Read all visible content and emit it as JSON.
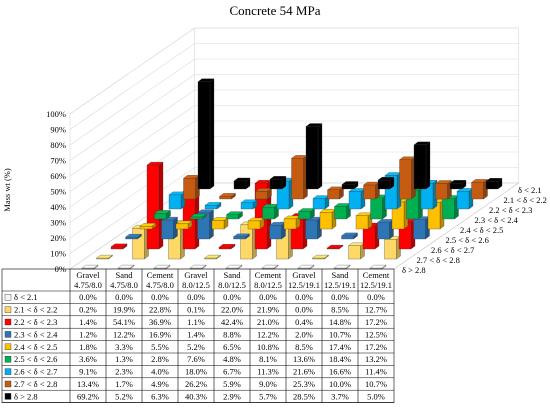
{
  "chart_data": {
    "type": "bar",
    "title": "Concrete 54 MPa",
    "xlabel": "",
    "ylabel": "Mass wt (%)",
    "ylim": [
      0,
      100
    ],
    "yticks": [
      "0%",
      "10%",
      "20%",
      "30%",
      "40%",
      "50%",
      "60%",
      "70%",
      "80%",
      "90%",
      "100%"
    ],
    "grid": true,
    "categories": [
      [
        "Gravel",
        "4.75/8.0"
      ],
      [
        "Sand",
        "4.75/8.0"
      ],
      [
        "Cement",
        "4.75/8.0"
      ],
      [
        "Gravel",
        "8.0/12.5"
      ],
      [
        "Sand",
        "8.0/12.5"
      ],
      [
        "Cement",
        "8.0/12.5"
      ],
      [
        "Gravel",
        "12.5/19.1"
      ],
      [
        "Sand",
        "12.5/19.1"
      ],
      [
        "Cement",
        "12.5/19.1"
      ]
    ],
    "series": [
      {
        "name": "δ < 2.1",
        "color": "#f5f5f5",
        "values": [
          0.0,
          0.0,
          0.0,
          0.0,
          0.0,
          0.0,
          0.0,
          0.0,
          0.0
        ],
        "labels": [
          "0.0%",
          "0.0%",
          "0.0%",
          "0.0%",
          "0.0%",
          "0.0%",
          "0.0%",
          "0.0%",
          "0.0%"
        ]
      },
      {
        "name": "2.1 < δ < 2.2",
        "color": "#ffd966",
        "values": [
          0.2,
          19.9,
          22.8,
          0.1,
          22.0,
          21.9,
          0.0,
          8.5,
          12.7
        ],
        "labels": [
          "0.2%",
          "19.9%",
          "22.8%",
          "0.1%",
          "22.0%",
          "21.9%",
          "0.0%",
          "8.5%",
          "12.7%"
        ]
      },
      {
        "name": "2.2 < δ < 2.3",
        "color": "#ff0000",
        "values": [
          1.4,
          54.1,
          36.9,
          1.1,
          42.4,
          21.0,
          0.4,
          14.8,
          17.2
        ],
        "labels": [
          "1.4%",
          "54.1%",
          "36.9%",
          "1.1%",
          "42.4%",
          "21.0%",
          "0.4%",
          "14.8%",
          "17.2%"
        ]
      },
      {
        "name": "2.3 < δ < 2.4",
        "color": "#2e75b6",
        "values": [
          1.2,
          12.2,
          16.9,
          1.4,
          8.8,
          12.2,
          2.0,
          10.7,
          12.5
        ],
        "labels": [
          "1.2%",
          "12.2%",
          "16.9%",
          "1.4%",
          "8.8%",
          "12.2%",
          "2.0%",
          "10.7%",
          "12.5%"
        ]
      },
      {
        "name": "2.4 < δ < 2.5",
        "color": "#ffc000",
        "values": [
          1.8,
          3.3,
          5.5,
          5.2,
          6.5,
          10.8,
          8.5,
          17.4,
          17.2
        ],
        "labels": [
          "1.8%",
          "3.3%",
          "5.5%",
          "5.2%",
          "6.5%",
          "10.8%",
          "8.5%",
          "17.4%",
          "17.2%"
        ]
      },
      {
        "name": "2.5 < δ < 2.6",
        "color": "#00b050",
        "values": [
          3.6,
          1.3,
          2.8,
          7.6,
          4.8,
          8.1,
          13.6,
          18.4,
          13.2
        ],
        "labels": [
          "3.6%",
          "1.3%",
          "2.8%",
          "7.6%",
          "4.8%",
          "8.1%",
          "13.6%",
          "18.4%",
          "13.2%"
        ]
      },
      {
        "name": "2.6 < δ < 2.7",
        "color": "#00b0f0",
        "values": [
          9.1,
          2.3,
          4.0,
          18.0,
          6.7,
          11.3,
          21.6,
          16.6,
          11.4
        ],
        "labels": [
          "9.1%",
          "2.3%",
          "4.0%",
          "18.0%",
          "6.7%",
          "11.3%",
          "21.6%",
          "16.6%",
          "11.4%"
        ]
      },
      {
        "name": "2.7 < δ < 2.8",
        "color": "#c55a11",
        "values": [
          13.4,
          1.7,
          4.9,
          26.2,
          5.9,
          9.0,
          25.3,
          10.0,
          10.7
        ],
        "labels": [
          "13.4%",
          "1.7%",
          "4.9%",
          "26.2%",
          "5.9%",
          "9.0%",
          "25.3%",
          "10.0%",
          "10.7%"
        ]
      },
      {
        "name": "δ > 2.8",
        "color": "#000000",
        "values": [
          69.2,
          5.2,
          6.3,
          40.3,
          2.9,
          5.7,
          28.5,
          3.7,
          5.0
        ],
        "labels": [
          "69.2%",
          "5.2%",
          "6.3%",
          "40.3%",
          "2.9%",
          "5.7%",
          "28.5%",
          "3.7%",
          "5.0%"
        ]
      }
    ],
    "depth_labels": [
      "δ < 2.1",
      "2.1 < δ < 2.2",
      "2.2 < δ < 2.3",
      "2.3 < δ < 2.4",
      "2.4 < δ < 2.5",
      "2.5 < δ < 2.6",
      "2.6 < δ < 2.7",
      "2.7 < δ < 2.8",
      "δ > 2.8"
    ]
  }
}
